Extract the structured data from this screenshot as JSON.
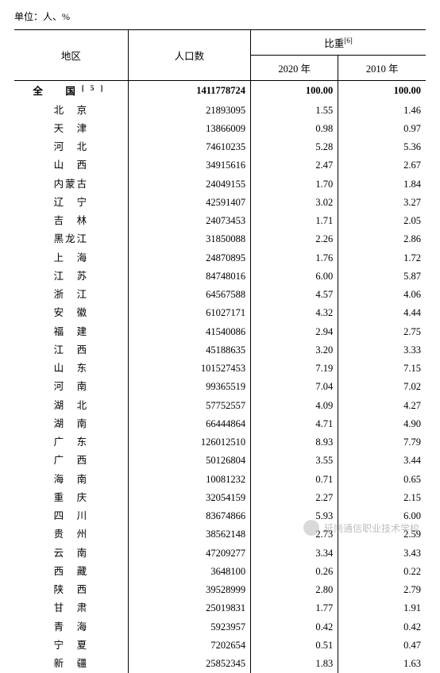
{
  "unit_label": "单位：人、%",
  "headers": {
    "region": "地区",
    "population": "人口数",
    "proportion": "比重",
    "proportion_sup": "[6]",
    "year_2020": "2020 年",
    "year_2010": "2010 年"
  },
  "total_row": {
    "region_label": "全　国",
    "region_sup": "[5]",
    "population": "1411778724",
    "pct_2020": "100.00",
    "pct_2010": "100.00"
  },
  "rows": [
    {
      "region": "北　京",
      "population": "21893095",
      "pct_2020": "1.55",
      "pct_2010": "1.46"
    },
    {
      "region": "天　津",
      "population": "13866009",
      "pct_2020": "0.98",
      "pct_2010": "0.97"
    },
    {
      "region": "河　北",
      "population": "74610235",
      "pct_2020": "5.28",
      "pct_2010": "5.36"
    },
    {
      "region": "山　西",
      "population": "34915616",
      "pct_2020": "2.47",
      "pct_2010": "2.67"
    },
    {
      "region": "内蒙古",
      "population": "24049155",
      "pct_2020": "1.70",
      "pct_2010": "1.84"
    },
    {
      "region": "辽　宁",
      "population": "42591407",
      "pct_2020": "3.02",
      "pct_2010": "3.27"
    },
    {
      "region": "吉　林",
      "population": "24073453",
      "pct_2020": "1.71",
      "pct_2010": "2.05"
    },
    {
      "region": "黑龙江",
      "population": "31850088",
      "pct_2020": "2.26",
      "pct_2010": "2.86"
    },
    {
      "region": "上　海",
      "population": "24870895",
      "pct_2020": "1.76",
      "pct_2010": "1.72"
    },
    {
      "region": "江　苏",
      "population": "84748016",
      "pct_2020": "6.00",
      "pct_2010": "5.87"
    },
    {
      "region": "浙　江",
      "population": "64567588",
      "pct_2020": "4.57",
      "pct_2010": "4.06"
    },
    {
      "region": "安　徽",
      "population": "61027171",
      "pct_2020": "4.32",
      "pct_2010": "4.44"
    },
    {
      "region": "福　建",
      "population": "41540086",
      "pct_2020": "2.94",
      "pct_2010": "2.75"
    },
    {
      "region": "江　西",
      "population": "45188635",
      "pct_2020": "3.20",
      "pct_2010": "3.33"
    },
    {
      "region": "山　东",
      "population": "101527453",
      "pct_2020": "7.19",
      "pct_2010": "7.15"
    },
    {
      "region": "河　南",
      "population": "99365519",
      "pct_2020": "7.04",
      "pct_2010": "7.02"
    },
    {
      "region": "湖　北",
      "population": "57752557",
      "pct_2020": "4.09",
      "pct_2010": "4.27"
    },
    {
      "region": "湖　南",
      "population": "66444864",
      "pct_2020": "4.71",
      "pct_2010": "4.90"
    },
    {
      "region": "广　东",
      "population": "126012510",
      "pct_2020": "8.93",
      "pct_2010": "7.79"
    },
    {
      "region": "广　西",
      "population": "50126804",
      "pct_2020": "3.55",
      "pct_2010": "3.44"
    },
    {
      "region": "海　南",
      "population": "10081232",
      "pct_2020": "0.71",
      "pct_2010": "0.65"
    },
    {
      "region": "重　庆",
      "population": "32054159",
      "pct_2020": "2.27",
      "pct_2010": "2.15"
    },
    {
      "region": "四　川",
      "population": "83674866",
      "pct_2020": "5.93",
      "pct_2010": "6.00"
    },
    {
      "region": "贵　州",
      "population": "38562148",
      "pct_2020": "2.73",
      "pct_2010": "2.59"
    },
    {
      "region": "云　南",
      "population": "47209277",
      "pct_2020": "3.34",
      "pct_2010": "3.43"
    },
    {
      "region": "西　藏",
      "population": "3648100",
      "pct_2020": "0.26",
      "pct_2010": "0.22"
    },
    {
      "region": "陕　西",
      "population": "39528999",
      "pct_2020": "2.80",
      "pct_2010": "2.79"
    },
    {
      "region": "甘　肃",
      "population": "25019831",
      "pct_2020": "1.77",
      "pct_2010": "1.91"
    },
    {
      "region": "青　海",
      "population": "5923957",
      "pct_2020": "0.42",
      "pct_2010": "0.42"
    },
    {
      "region": "宁　夏",
      "population": "7202654",
      "pct_2020": "0.51",
      "pct_2010": "0.47"
    },
    {
      "region": "新　疆",
      "population": "25852345",
      "pct_2020": "1.83",
      "pct_2010": "1.63"
    }
  ],
  "watermark": {
    "text": "延南通信职业技术学校"
  },
  "style": {
    "font_family": "SimSun",
    "font_size_body": 12.5,
    "font_size_unit": 12,
    "border_color": "#000000",
    "background": "#ffffff",
    "watermark_color": "#888888"
  }
}
